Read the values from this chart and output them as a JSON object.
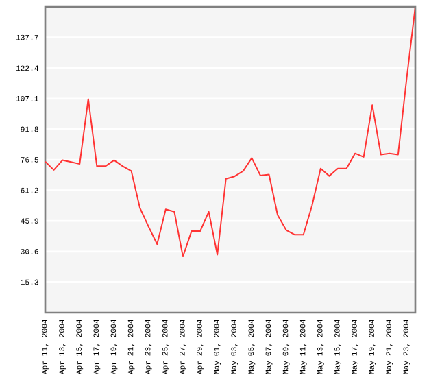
{
  "chart_data": {
    "type": "line",
    "categories": [
      "Apr 11, 2004",
      null,
      "Apr 13, 2004",
      null,
      "Apr 15, 2004",
      null,
      "Apr 17, 2004",
      null,
      "Apr 19, 2004",
      null,
      "Apr 21, 2004",
      null,
      "Apr 23, 2004",
      null,
      "Apr 25, 2004",
      null,
      "Apr 27, 2004",
      null,
      "Apr 29, 2004",
      null,
      "May 01, 2004",
      null,
      "May 03, 2004",
      null,
      "May 05, 2004",
      null,
      "May 07, 2004",
      null,
      "May 09, 2004",
      null,
      "May 11, 2004",
      null,
      "May 13, 2004",
      null,
      "May 15, 2004",
      null,
      "May 17, 2004",
      null,
      "May 19, 2004",
      null,
      "May 21, 2004",
      null,
      "May 23, 2004",
      null
    ],
    "values": [
      75.6,
      71.4,
      76.3,
      75.4,
      74.4,
      106.9,
      73.3,
      73.3,
      76.3,
      73.3,
      70.9,
      52.4,
      43.1,
      34.3,
      51.7,
      50.5,
      28.1,
      40.8,
      40.8,
      50.5,
      29.0,
      67.0,
      68.2,
      70.9,
      77.4,
      68.6,
      69.1,
      48.9,
      41.3,
      39.0,
      39.0,
      53.6,
      72.1,
      68.4,
      72.1,
      72.1,
      79.7,
      77.9,
      103.9,
      79.1,
      79.7,
      79.1,
      117.3,
      153
    ],
    "color": "#ff3333",
    "ylim": [
      0,
      153
    ],
    "yticks": [
      15.3,
      30.6,
      45.9,
      61.2,
      76.5,
      91.8,
      107.1,
      122.4,
      137.7
    ],
    "grid": "y"
  }
}
